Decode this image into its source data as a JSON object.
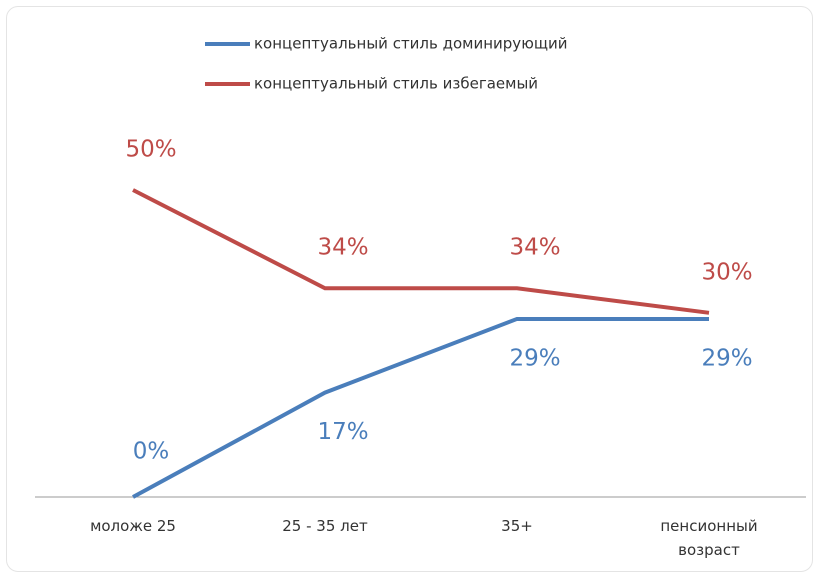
{
  "chart_data": {
    "type": "line",
    "categories": [
      "моложе 25",
      "25 - 35 лет",
      "35+",
      "пенсионный возраст"
    ],
    "ylim": [
      0,
      50
    ],
    "series": [
      {
        "name": "концептуальный стиль доминирующий",
        "color": "#4a7ebb",
        "values": [
          0,
          17,
          29,
          29
        ],
        "value_labels": [
          "0%",
          "17%",
          "29%",
          "29%"
        ]
      },
      {
        "name": "концептуальный стиль избегаемый",
        "color": "#be4b48",
        "values": [
          50,
          34,
          34,
          30
        ],
        "value_labels": [
          "50%",
          "34%",
          "34%",
          "30%"
        ]
      }
    ]
  }
}
